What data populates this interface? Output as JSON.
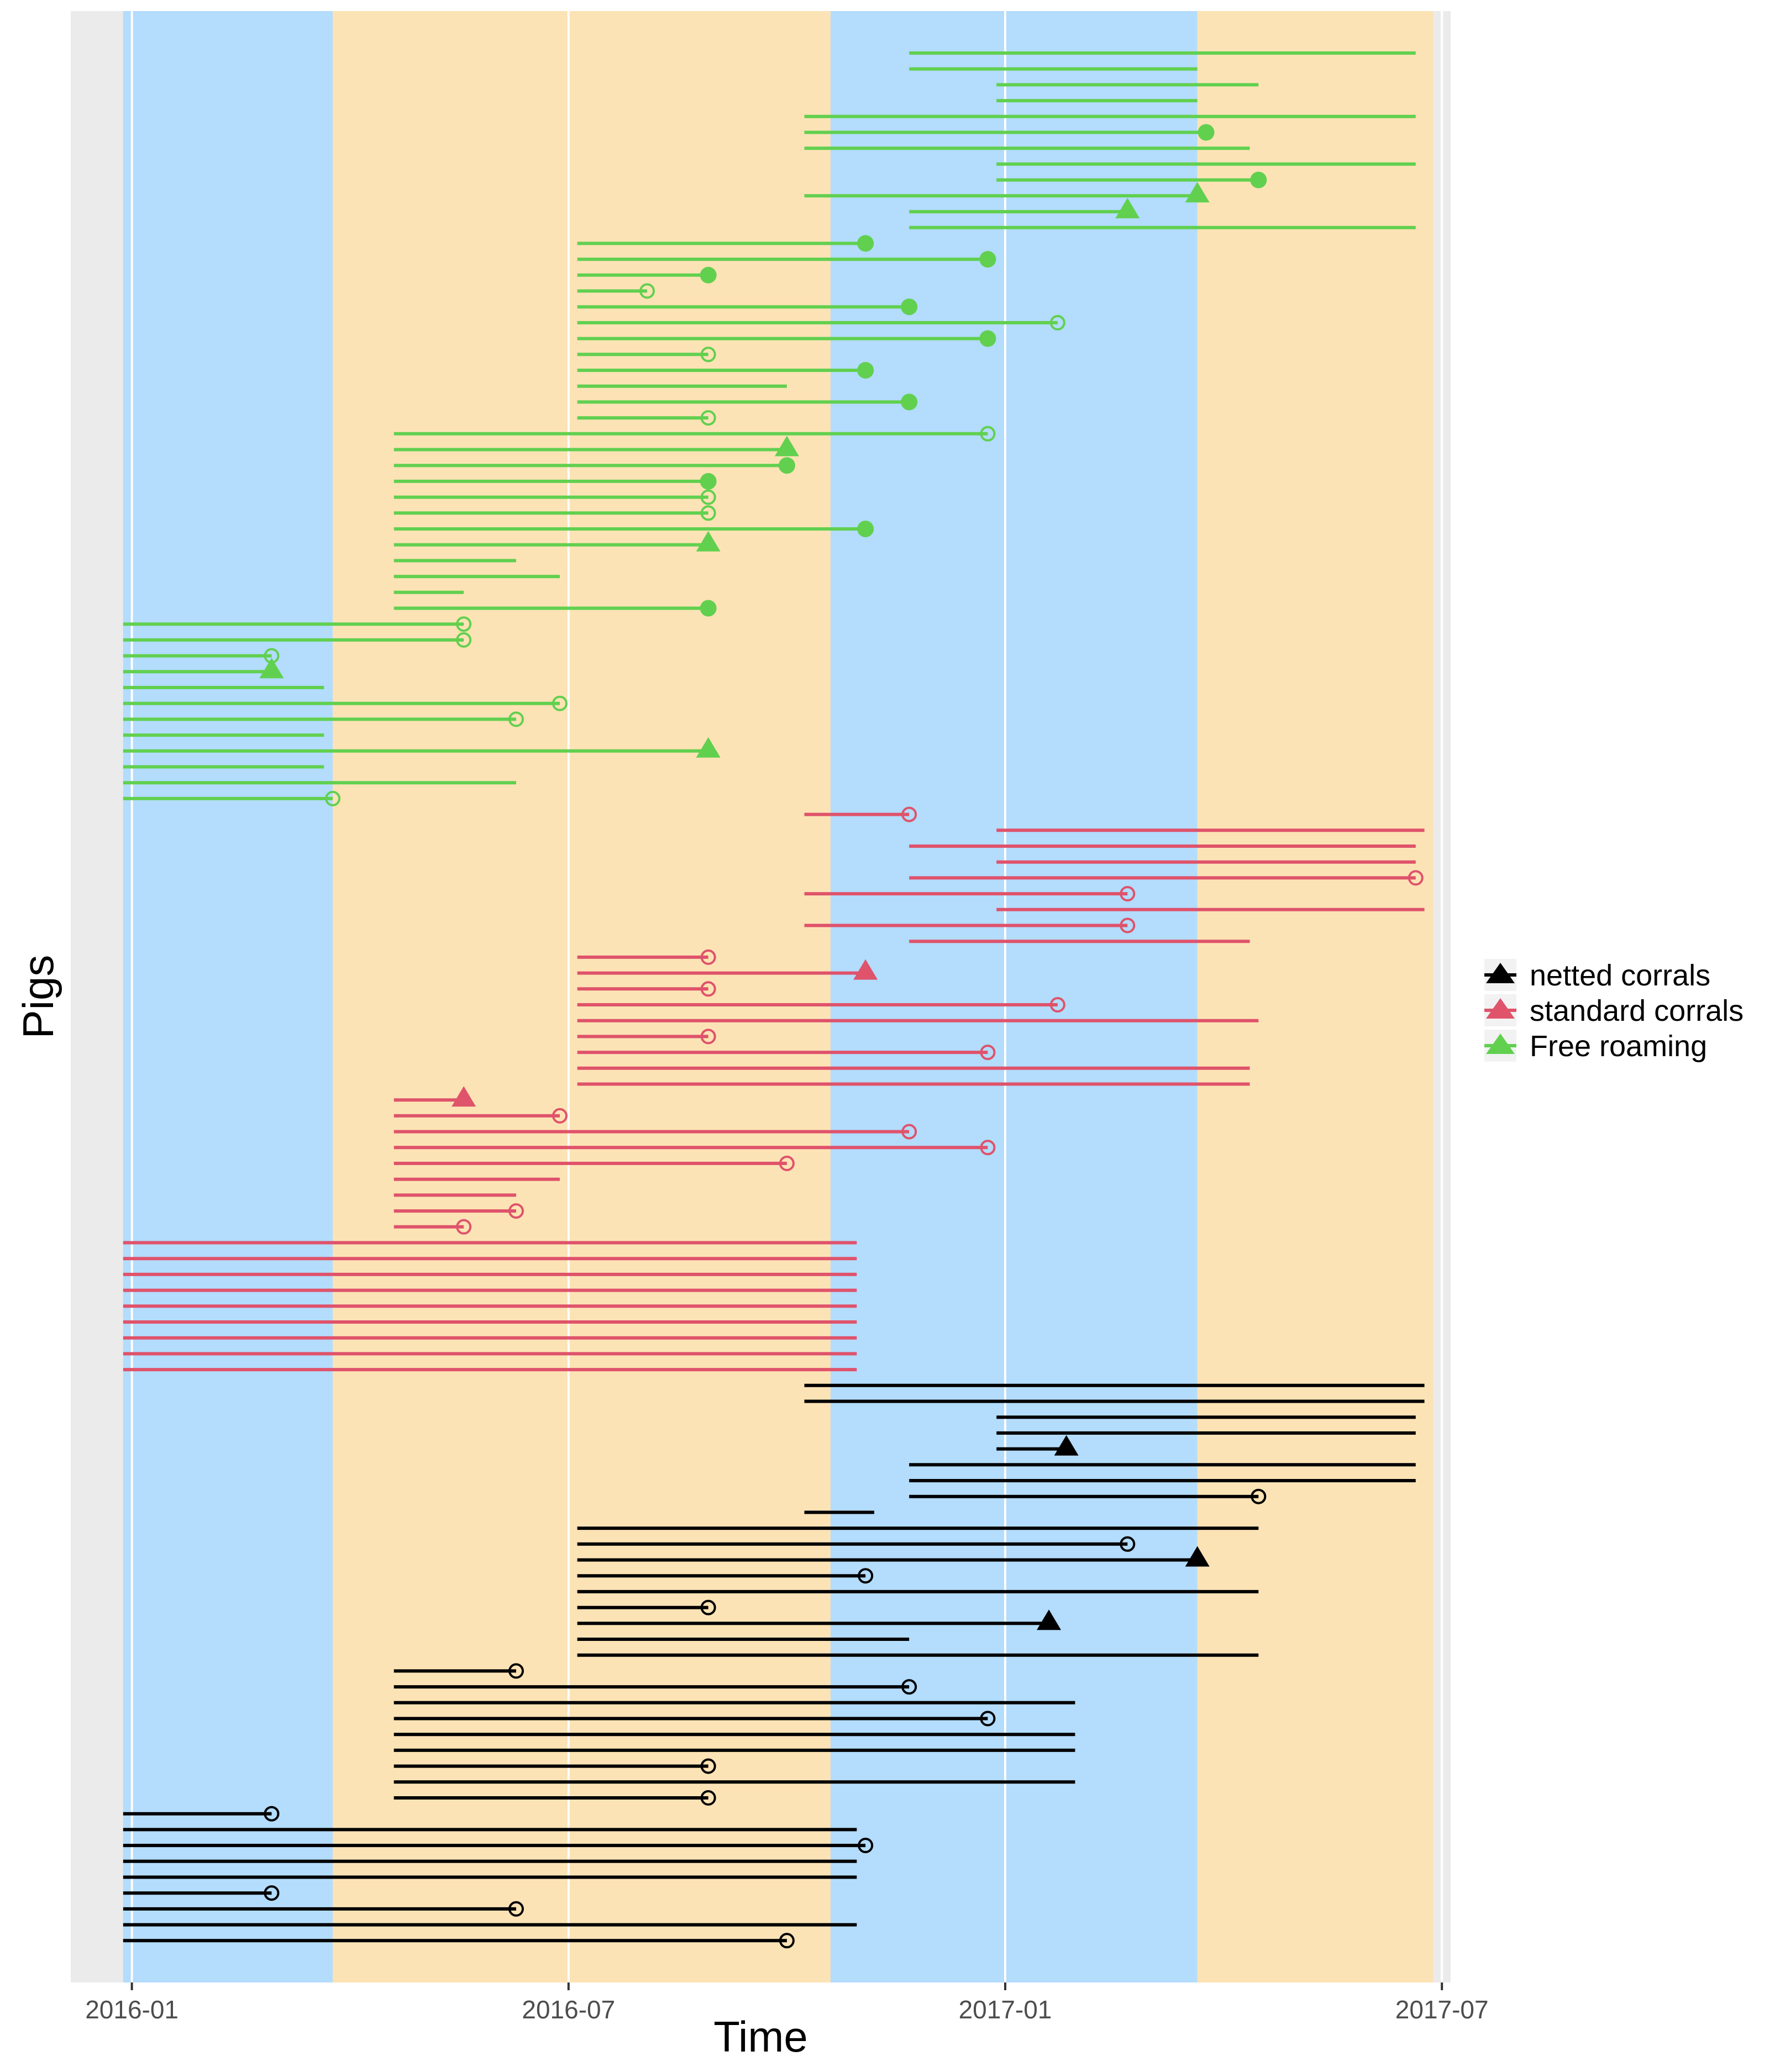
{
  "chart_data": {
    "type": "gantt-timeline",
    "xlabel": "Time",
    "ylabel": "Pigs",
    "x_ticks": [
      "2016-01",
      "2016-07",
      "2017-01",
      "2017-07"
    ],
    "x_tick_values": [
      2016.0,
      2016.5,
      2017.0,
      2017.5
    ],
    "xlim": [
      2015.93,
      2017.51
    ],
    "y_rows": 122,
    "background_bands": [
      {
        "start": 2015.99,
        "end": 2016.23,
        "season": "blue",
        "color": "#b3dcfd"
      },
      {
        "start": 2016.23,
        "end": 2016.8,
        "season": "orange",
        "color": "#fce3b5"
      },
      {
        "start": 2016.8,
        "end": 2017.22,
        "season": "blue",
        "color": "#b3dcfd"
      },
      {
        "start": 2017.22,
        "end": 2017.49,
        "season": "orange",
        "color": "#fce3b5"
      }
    ],
    "legend": {
      "placement": "right",
      "entries": [
        {
          "label": "netted corrals",
          "color": "#000000",
          "key": "netted"
        },
        {
          "label": "standard corrals",
          "color": "#df536b",
          "key": "standard"
        },
        {
          "label": "Free roaming",
          "color": "#61d04f",
          "key": "free"
        }
      ]
    },
    "series": [
      {
        "name": "Free roaming",
        "key": "free",
        "color": "#61d04f",
        "segments": [
          {
            "row": 1,
            "start": 2016.89,
            "end": 2017.47,
            "marker": "none"
          },
          {
            "row": 2,
            "start": 2016.89,
            "end": 2017.22,
            "marker": "none"
          },
          {
            "row": 3,
            "start": 2016.99,
            "end": 2017.29,
            "marker": "none"
          },
          {
            "row": 4,
            "start": 2016.99,
            "end": 2017.22,
            "marker": "none"
          },
          {
            "row": 5,
            "start": 2016.77,
            "end": 2017.47,
            "marker": "none"
          },
          {
            "row": 6,
            "start": 2016.77,
            "end": 2017.23,
            "marker": "dot"
          },
          {
            "row": 7,
            "start": 2016.77,
            "end": 2017.28,
            "marker": "none"
          },
          {
            "row": 8,
            "start": 2016.99,
            "end": 2017.47,
            "marker": "none"
          },
          {
            "row": 9,
            "start": 2016.99,
            "end": 2017.29,
            "marker": "dot"
          },
          {
            "row": 10,
            "start": 2016.77,
            "end": 2017.22,
            "marker": "triangle"
          },
          {
            "row": 11,
            "start": 2016.89,
            "end": 2017.14,
            "marker": "triangle"
          },
          {
            "row": 12,
            "start": 2016.89,
            "end": 2017.47,
            "marker": "none"
          },
          {
            "row": 13,
            "start": 2016.51,
            "end": 2016.84,
            "marker": "dot"
          },
          {
            "row": 14,
            "start": 2016.51,
            "end": 2016.98,
            "marker": "dot"
          },
          {
            "row": 15,
            "start": 2016.51,
            "end": 2016.66,
            "marker": "dot"
          },
          {
            "row": 16,
            "start": 2016.51,
            "end": 2016.59,
            "marker": "open"
          },
          {
            "row": 17,
            "start": 2016.51,
            "end": 2016.89,
            "marker": "dot"
          },
          {
            "row": 18,
            "start": 2016.51,
            "end": 2017.06,
            "marker": "open"
          },
          {
            "row": 19,
            "start": 2016.51,
            "end": 2016.98,
            "marker": "dot"
          },
          {
            "row": 20,
            "start": 2016.51,
            "end": 2016.66,
            "marker": "open"
          },
          {
            "row": 21,
            "start": 2016.51,
            "end": 2016.84,
            "marker": "dot"
          },
          {
            "row": 22,
            "start": 2016.51,
            "end": 2016.75,
            "marker": "none"
          },
          {
            "row": 23,
            "start": 2016.51,
            "end": 2016.89,
            "marker": "dot"
          },
          {
            "row": 24,
            "start": 2016.51,
            "end": 2016.66,
            "marker": "open"
          },
          {
            "row": 25,
            "start": 2016.3,
            "end": 2016.98,
            "marker": "open"
          },
          {
            "row": 26,
            "start": 2016.3,
            "end": 2016.75,
            "marker": "triangle"
          },
          {
            "row": 27,
            "start": 2016.3,
            "end": 2016.75,
            "marker": "dot"
          },
          {
            "row": 28,
            "start": 2016.3,
            "end": 2016.66,
            "marker": "dot"
          },
          {
            "row": 29,
            "start": 2016.3,
            "end": 2016.66,
            "marker": "open"
          },
          {
            "row": 30,
            "start": 2016.3,
            "end": 2016.66,
            "marker": "open"
          },
          {
            "row": 31,
            "start": 2016.3,
            "end": 2016.84,
            "marker": "dot"
          },
          {
            "row": 32,
            "start": 2016.3,
            "end": 2016.66,
            "marker": "triangle"
          },
          {
            "row": 33,
            "start": 2016.3,
            "end": 2016.44,
            "marker": "none"
          },
          {
            "row": 34,
            "start": 2016.3,
            "end": 2016.49,
            "marker": "none"
          },
          {
            "row": 35,
            "start": 2016.3,
            "end": 2016.38,
            "marker": "none"
          },
          {
            "row": 36,
            "start": 2016.3,
            "end": 2016.66,
            "marker": "dot"
          },
          {
            "row": 37,
            "start": 2015.99,
            "end": 2016.38,
            "marker": "open"
          },
          {
            "row": 38,
            "start": 2015.99,
            "end": 2016.38,
            "marker": "open"
          },
          {
            "row": 39,
            "start": 2015.99,
            "end": 2016.16,
            "marker": "open"
          },
          {
            "row": 40,
            "start": 2015.99,
            "end": 2016.16,
            "marker": "triangle"
          },
          {
            "row": 41,
            "start": 2015.99,
            "end": 2016.22,
            "marker": "none"
          },
          {
            "row": 42,
            "start": 2015.99,
            "end": 2016.49,
            "marker": "open"
          },
          {
            "row": 43,
            "start": 2015.99,
            "end": 2016.44,
            "marker": "open"
          },
          {
            "row": 44,
            "start": 2015.99,
            "end": 2016.22,
            "marker": "none"
          },
          {
            "row": 45,
            "start": 2015.99,
            "end": 2016.66,
            "marker": "triangle"
          },
          {
            "row": 46,
            "start": 2015.99,
            "end": 2016.22,
            "marker": "none"
          },
          {
            "row": 47,
            "start": 2015.99,
            "end": 2016.44,
            "marker": "none"
          },
          {
            "row": 48,
            "start": 2015.99,
            "end": 2016.23,
            "marker": "open"
          }
        ]
      },
      {
        "name": "standard corrals",
        "key": "standard",
        "color": "#df536b",
        "segments": [
          {
            "row": 49,
            "start": 2016.77,
            "end": 2016.89,
            "marker": "open"
          },
          {
            "row": 50,
            "start": 2016.99,
            "end": 2017.48,
            "marker": "none"
          },
          {
            "row": 51,
            "start": 2016.89,
            "end": 2017.47,
            "marker": "none"
          },
          {
            "row": 52,
            "start": 2016.99,
            "end": 2017.47,
            "marker": "none"
          },
          {
            "row": 53,
            "start": 2016.89,
            "end": 2017.47,
            "marker": "open"
          },
          {
            "row": 54,
            "start": 2016.77,
            "end": 2017.14,
            "marker": "open"
          },
          {
            "row": 55,
            "start": 2016.99,
            "end": 2017.48,
            "marker": "none"
          },
          {
            "row": 56,
            "start": 2016.77,
            "end": 2017.14,
            "marker": "open"
          },
          {
            "row": 57,
            "start": 2016.89,
            "end": 2017.28,
            "marker": "none"
          },
          {
            "row": 58,
            "start": 2016.51,
            "end": 2016.66,
            "marker": "open"
          },
          {
            "row": 59,
            "start": 2016.51,
            "end": 2016.84,
            "marker": "triangle"
          },
          {
            "row": 60,
            "start": 2016.51,
            "end": 2016.66,
            "marker": "open"
          },
          {
            "row": 61,
            "start": 2016.51,
            "end": 2017.06,
            "marker": "open"
          },
          {
            "row": 62,
            "start": 2016.51,
            "end": 2017.29,
            "marker": "none"
          },
          {
            "row": 63,
            "start": 2016.51,
            "end": 2016.66,
            "marker": "open"
          },
          {
            "row": 64,
            "start": 2016.51,
            "end": 2016.98,
            "marker": "open"
          },
          {
            "row": 65,
            "start": 2016.51,
            "end": 2017.28,
            "marker": "none"
          },
          {
            "row": 66,
            "start": 2016.51,
            "end": 2017.28,
            "marker": "none"
          },
          {
            "row": 67,
            "start": 2016.3,
            "end": 2016.38,
            "marker": "triangle"
          },
          {
            "row": 68,
            "start": 2016.3,
            "end": 2016.49,
            "marker": "open"
          },
          {
            "row": 69,
            "start": 2016.3,
            "end": 2016.89,
            "marker": "open"
          },
          {
            "row": 70,
            "start": 2016.3,
            "end": 2016.98,
            "marker": "open"
          },
          {
            "row": 71,
            "start": 2016.3,
            "end": 2016.75,
            "marker": "open"
          },
          {
            "row": 72,
            "start": 2016.3,
            "end": 2016.49,
            "marker": "none"
          },
          {
            "row": 73,
            "start": 2016.3,
            "end": 2016.44,
            "marker": "none"
          },
          {
            "row": 74,
            "start": 2016.3,
            "end": 2016.44,
            "marker": "open"
          },
          {
            "row": 75,
            "start": 2016.3,
            "end": 2016.38,
            "marker": "open"
          },
          {
            "row": 76,
            "start": 2015.99,
            "end": 2016.83,
            "marker": "none"
          },
          {
            "row": 77,
            "start": 2015.99,
            "end": 2016.83,
            "marker": "none"
          },
          {
            "row": 78,
            "start": 2015.99,
            "end": 2016.83,
            "marker": "none"
          },
          {
            "row": 79,
            "start": 2015.99,
            "end": 2016.83,
            "marker": "none"
          },
          {
            "row": 80,
            "start": 2015.99,
            "end": 2016.83,
            "marker": "none"
          },
          {
            "row": 81,
            "start": 2015.99,
            "end": 2016.83,
            "marker": "none"
          },
          {
            "row": 82,
            "start": 2015.99,
            "end": 2016.83,
            "marker": "none"
          },
          {
            "row": 83,
            "start": 2015.99,
            "end": 2016.83,
            "marker": "none"
          },
          {
            "row": 84,
            "start": 2015.99,
            "end": 2016.83,
            "marker": "none"
          }
        ]
      },
      {
        "name": "netted corrals",
        "key": "netted",
        "color": "#000000",
        "segments": [
          {
            "row": 85,
            "start": 2016.77,
            "end": 2017.48,
            "marker": "none"
          },
          {
            "row": 86,
            "start": 2016.77,
            "end": 2017.48,
            "marker": "none"
          },
          {
            "row": 87,
            "start": 2016.99,
            "end": 2017.47,
            "marker": "none"
          },
          {
            "row": 88,
            "start": 2016.99,
            "end": 2017.47,
            "marker": "none"
          },
          {
            "row": 89,
            "start": 2016.99,
            "end": 2017.07,
            "marker": "triangle"
          },
          {
            "row": 90,
            "start": 2016.89,
            "end": 2017.47,
            "marker": "none"
          },
          {
            "row": 91,
            "start": 2016.89,
            "end": 2017.47,
            "marker": "none"
          },
          {
            "row": 92,
            "start": 2016.89,
            "end": 2017.29,
            "marker": "open"
          },
          {
            "row": 93,
            "start": 2016.77,
            "end": 2016.85,
            "marker": "none"
          },
          {
            "row": 94,
            "start": 2016.51,
            "end": 2017.29,
            "marker": "none"
          },
          {
            "row": 95,
            "start": 2016.51,
            "end": 2017.14,
            "marker": "open"
          },
          {
            "row": 96,
            "start": 2016.51,
            "end": 2017.22,
            "marker": "triangle"
          },
          {
            "row": 97,
            "start": 2016.51,
            "end": 2016.84,
            "marker": "open"
          },
          {
            "row": 98,
            "start": 2016.51,
            "end": 2017.29,
            "marker": "none"
          },
          {
            "row": 99,
            "start": 2016.51,
            "end": 2016.66,
            "marker": "open"
          },
          {
            "row": 100,
            "start": 2016.51,
            "end": 2017.05,
            "marker": "triangle"
          },
          {
            "row": 101,
            "start": 2016.51,
            "end": 2016.89,
            "marker": "none"
          },
          {
            "row": 102,
            "start": 2016.51,
            "end": 2017.29,
            "marker": "none"
          },
          {
            "row": 103,
            "start": 2016.3,
            "end": 2016.44,
            "marker": "open"
          },
          {
            "row": 104,
            "start": 2016.3,
            "end": 2016.89,
            "marker": "open"
          },
          {
            "row": 105,
            "start": 2016.3,
            "end": 2017.08,
            "marker": "none"
          },
          {
            "row": 106,
            "start": 2016.3,
            "end": 2016.98,
            "marker": "open"
          },
          {
            "row": 107,
            "start": 2016.3,
            "end": 2017.08,
            "marker": "none"
          },
          {
            "row": 108,
            "start": 2016.3,
            "end": 2017.08,
            "marker": "none"
          },
          {
            "row": 109,
            "start": 2016.3,
            "end": 2016.66,
            "marker": "open"
          },
          {
            "row": 110,
            "start": 2016.3,
            "end": 2017.08,
            "marker": "none"
          },
          {
            "row": 111,
            "start": 2016.3,
            "end": 2016.66,
            "marker": "open"
          },
          {
            "row": 112,
            "start": 2015.99,
            "end": 2016.16,
            "marker": "open"
          },
          {
            "row": 113,
            "start": 2015.99,
            "end": 2016.83,
            "marker": "none"
          },
          {
            "row": 114,
            "start": 2015.99,
            "end": 2016.84,
            "marker": "open"
          },
          {
            "row": 115,
            "start": 2015.99,
            "end": 2016.83,
            "marker": "none"
          },
          {
            "row": 116,
            "start": 2015.99,
            "end": 2016.83,
            "marker": "none"
          },
          {
            "row": 117,
            "start": 2015.99,
            "end": 2016.16,
            "marker": "open"
          },
          {
            "row": 118,
            "start": 2015.99,
            "end": 2016.44,
            "marker": "open"
          },
          {
            "row": 119,
            "start": 2015.99,
            "end": 2016.83,
            "marker": "none"
          },
          {
            "row": 120,
            "start": 2015.99,
            "end": 2016.75,
            "marker": "open"
          }
        ]
      }
    ]
  }
}
